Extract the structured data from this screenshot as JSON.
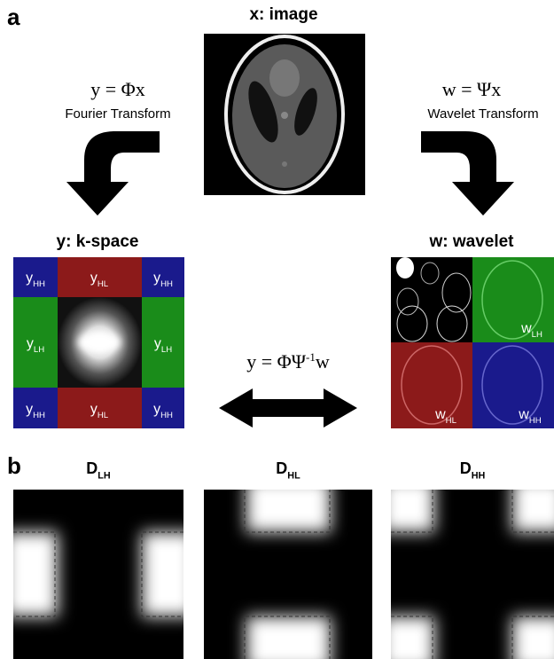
{
  "panel_a": {
    "label": "a",
    "image_title": "x: image",
    "fourier": {
      "equation": "y = Φx",
      "name": "Fourier Transform"
    },
    "wavelet_tf": {
      "equation": "w = Ψx",
      "name": "Wavelet Transform"
    },
    "kspace": {
      "title": "y: k-space",
      "labels": [
        {
          "base": "y",
          "sub": "HH"
        },
        {
          "base": "y",
          "sub": "HL"
        },
        {
          "base": "y",
          "sub": "HH"
        },
        {
          "base": "y",
          "sub": "LH"
        },
        {
          "base": "y",
          "sub": "LH"
        },
        {
          "base": "y",
          "sub": "HH"
        },
        {
          "base": "y",
          "sub": "HL"
        },
        {
          "base": "y",
          "sub": "HH"
        }
      ]
    },
    "wavelet": {
      "title": "w: wavelet",
      "labels": [
        {
          "base": "w",
          "sub": "LH"
        },
        {
          "base": "w",
          "sub": "HL"
        },
        {
          "base": "w",
          "sub": "HH"
        }
      ]
    },
    "relation": {
      "before": "y = ΦΨ",
      "sup": "-1",
      "after": "w"
    }
  },
  "panel_b": {
    "label": "b",
    "filters": [
      {
        "base": "D",
        "sub": "LH"
      },
      {
        "base": "D",
        "sub": "HL"
      },
      {
        "base": "D",
        "sub": "HH"
      }
    ]
  }
}
